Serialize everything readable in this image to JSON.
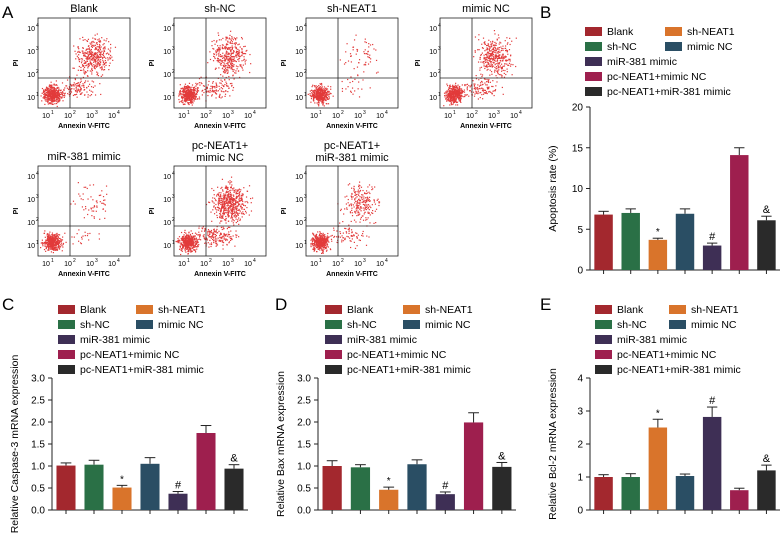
{
  "panel_letters": {
    "A": "A",
    "B": "B",
    "C": "C",
    "D": "D",
    "E": "E"
  },
  "colors": {
    "blank": "#a3282e",
    "sh_nc": "#2a7046",
    "sh_neat1": "#d9742b",
    "mimic_nc": "#2a4e64",
    "mir381": "#3e2f55",
    "pc_mimic_nc": "#9e1f4e",
    "pc_mir381": "#2a2a2a",
    "dot": "#e23b3b"
  },
  "legend": [
    "Blank",
    "sh-NEAT1",
    "sh-NC",
    "mimic NC",
    "miR-381 mimic",
    "pc-NEAT1+mimic NC",
    "pc-NEAT1+miR-381 mimic"
  ],
  "flow_panels": [
    {
      "title": "Blank",
      "title2": "",
      "n": 2,
      "pos": 0
    },
    {
      "title": "sh-NC",
      "title2": "",
      "n": 2,
      "pos": 1
    },
    {
      "title": "sh-NEAT1",
      "title2": "",
      "n": 0,
      "pos": 2
    },
    {
      "title": "mimic NC",
      "title2": "",
      "n": 2,
      "pos": 3
    },
    {
      "title": "miR-381 mimic",
      "title2": "",
      "n": 0,
      "pos": 4
    },
    {
      "title": "pc-NEAT1+",
      "title2": "mimic NC",
      "n": 3,
      "pos": 5
    },
    {
      "title": "pc-NEAT1+",
      "title2": "miR-381 mimic",
      "n": 1,
      "pos": 6
    }
  ],
  "flow_axis": {
    "xlabel": "Annexin V-FITC",
    "ylabel": "PI",
    "ticks": [
      "10",
      "10",
      "10",
      "10"
    ],
    "exps": [
      "1",
      "2",
      "3",
      "4"
    ]
  },
  "chart_data": [
    {
      "panel": "B",
      "type": "bar",
      "categories": [
        "Blank",
        "sh-NC",
        "sh-NEAT1",
        "mimic NC",
        "miR-381 mimic",
        "pc-NEAT1+mimic NC",
        "pc-NEAT1+miR-381 mimic"
      ],
      "values": [
        6.8,
        7.0,
        3.7,
        6.9,
        3.0,
        14.1,
        6.1
      ],
      "errors": [
        0.4,
        0.5,
        0.2,
        0.6,
        0.3,
        0.9,
        0.5
      ],
      "annotations": [
        "",
        "",
        "*",
        "",
        "#",
        "",
        "&"
      ],
      "ylabel": "Apoptosis rate (%)",
      "ylim": [
        0,
        20
      ],
      "yticks": [
        0,
        5,
        10,
        15,
        20
      ],
      "ytick_labels": [
        "0",
        "5",
        "10",
        "15",
        "20"
      ]
    },
    {
      "panel": "C",
      "type": "bar",
      "categories": [
        "Blank",
        "sh-NC",
        "sh-NEAT1",
        "mimic NC",
        "miR-381 mimic",
        "pc-NEAT1+mimic NC",
        "pc-NEAT1+miR-381 mimic"
      ],
      "values": [
        1.01,
        1.03,
        0.51,
        1.05,
        0.37,
        1.75,
        0.94
      ],
      "errors": [
        0.06,
        0.1,
        0.05,
        0.14,
        0.05,
        0.17,
        0.09
      ],
      "annotations": [
        "",
        "",
        "*",
        "",
        "#",
        "",
        "&"
      ],
      "ylabel": "Relative Caspase-3 mRNA expression",
      "ylim": [
        0,
        3
      ],
      "yticks": [
        0,
        0.5,
        1,
        1.5,
        2,
        2.5,
        3
      ],
      "ytick_labels": [
        "0.0",
        "0.5",
        "1.0",
        "1.5",
        "2.0",
        "2.5",
        "3.0"
      ]
    },
    {
      "panel": "D",
      "type": "bar",
      "categories": [
        "Blank",
        "sh-NC",
        "sh-NEAT1",
        "mimic NC",
        "miR-381 mimic",
        "pc-NEAT1+mimic NC",
        "pc-NEAT1+miR-381 mimic"
      ],
      "values": [
        1.0,
        0.97,
        0.46,
        1.04,
        0.36,
        1.99,
        0.98
      ],
      "errors": [
        0.12,
        0.06,
        0.06,
        0.1,
        0.05,
        0.22,
        0.1
      ],
      "annotations": [
        "",
        "",
        "*",
        "",
        "#",
        "",
        "&"
      ],
      "ylabel": "Relative Bax mRNA expression",
      "ylim": [
        0,
        3
      ],
      "yticks": [
        0,
        0.5,
        1,
        1.5,
        2,
        2.5,
        3
      ],
      "ytick_labels": [
        "0.0",
        "0.5",
        "1.0",
        "1.5",
        "2.0",
        "2.5",
        "3.0"
      ]
    },
    {
      "panel": "E",
      "type": "bar",
      "categories": [
        "Blank",
        "sh-NC",
        "sh-NEAT1",
        "mimic NC",
        "miR-381 mimic",
        "pc-NEAT1+mimic NC",
        "pc-NEAT1+miR-381 mimic"
      ],
      "values": [
        1.0,
        1.0,
        2.5,
        1.03,
        2.82,
        0.6,
        1.2
      ],
      "errors": [
        0.07,
        0.1,
        0.25,
        0.06,
        0.3,
        0.06,
        0.16
      ],
      "annotations": [
        "",
        "",
        "*",
        "",
        "#",
        "",
        "&"
      ],
      "ylabel": "Relative Bcl-2 mRNA expression",
      "ylim": [
        0,
        4
      ],
      "yticks": [
        0,
        1,
        2,
        3,
        4
      ],
      "ytick_labels": [
        "0",
        "1",
        "2",
        "3",
        "4"
      ]
    }
  ]
}
